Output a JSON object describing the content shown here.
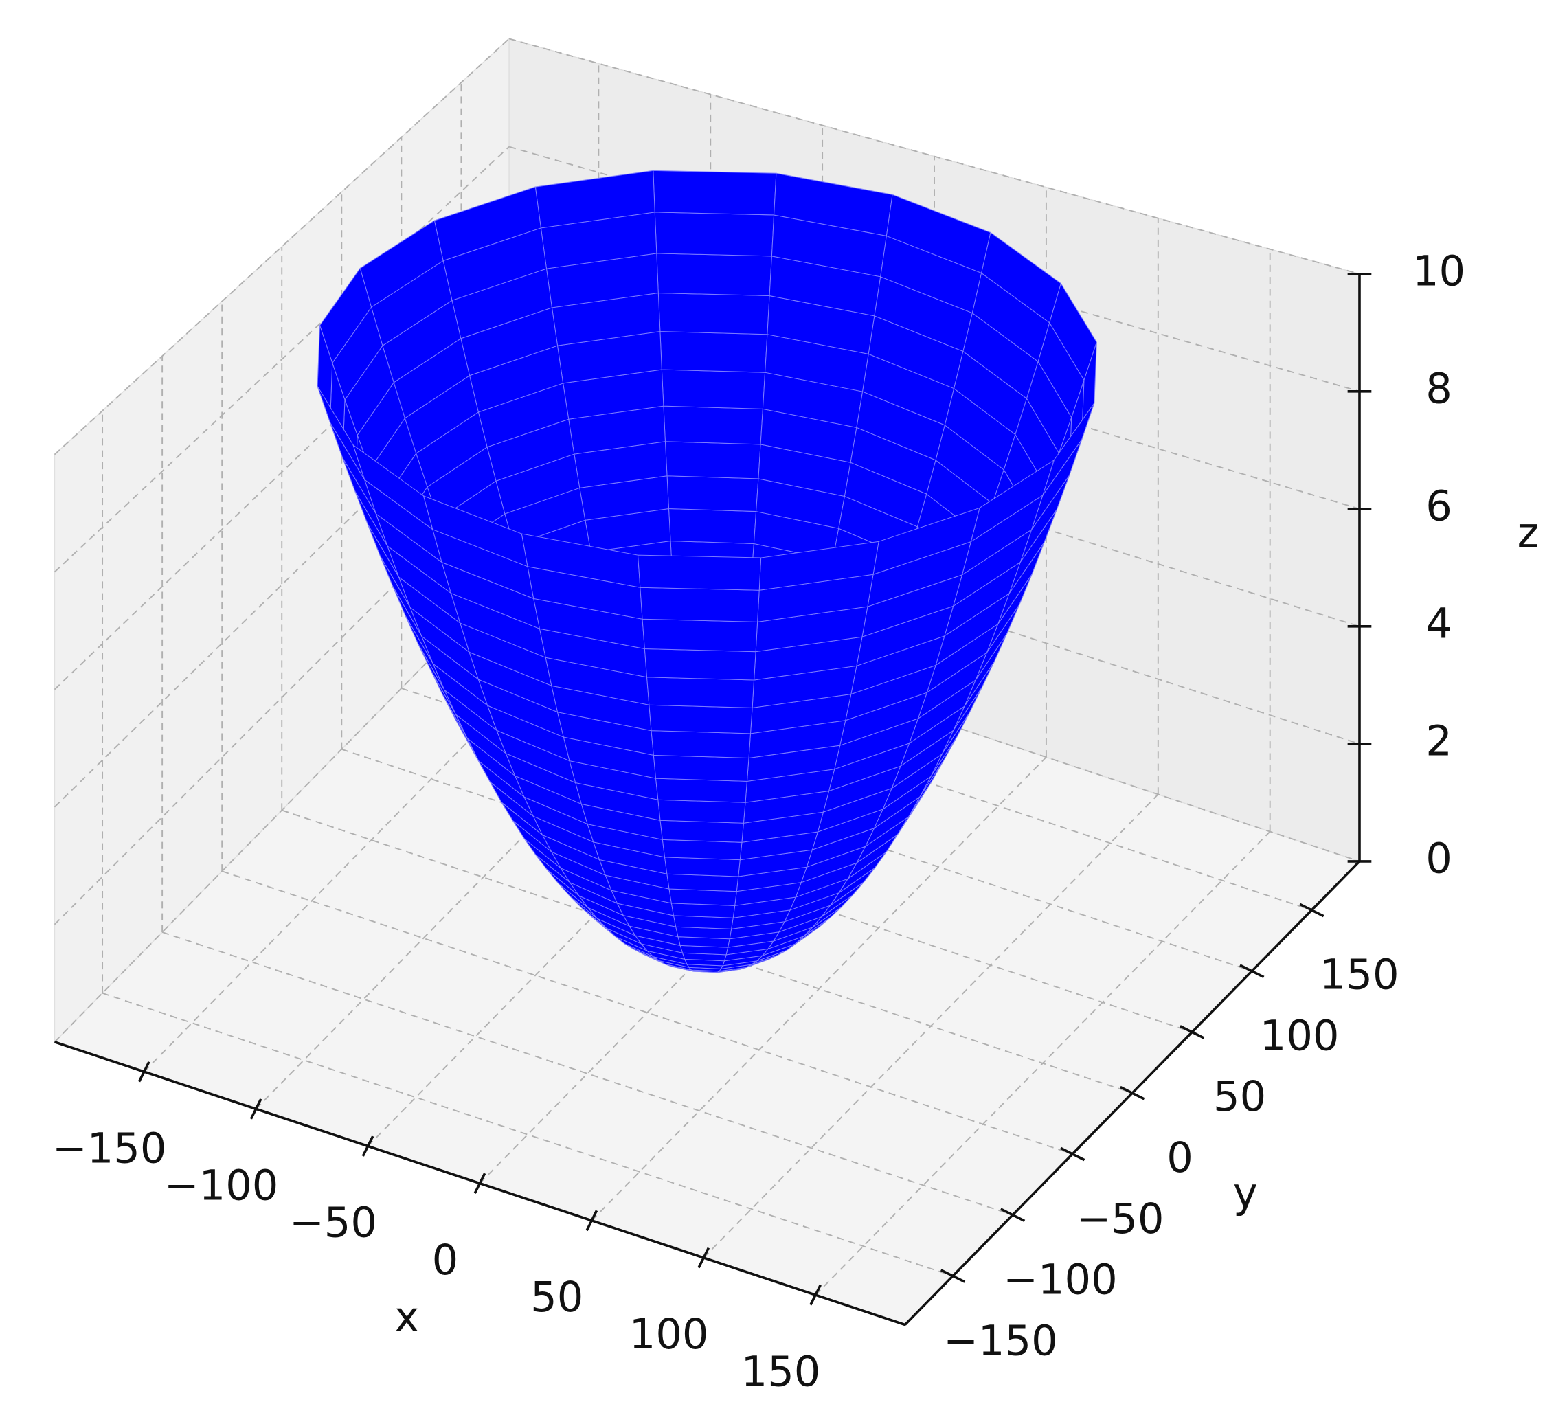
{
  "chart_data": {
    "type": "surface3d",
    "color": "#0000ff",
    "xlabel": "x",
    "ylabel": "y",
    "zlabel": "z",
    "xlim": [
      -190,
      190
    ],
    "ylim": [
      -190,
      190
    ],
    "zlim": [
      0,
      10
    ],
    "xticks": [
      {
        "value": -150,
        "label": "−150"
      },
      {
        "value": -100,
        "label": "−100"
      },
      {
        "value": -50,
        "label": "−50"
      },
      0,
      50,
      100,
      150
    ],
    "yticks": [
      {
        "value": -150,
        "label": "−150"
      },
      {
        "value": -100,
        "label": "−100"
      },
      {
        "value": -50,
        "label": "−50"
      },
      0,
      50,
      100,
      150
    ],
    "zticks": [
      0,
      2,
      4,
      6,
      8,
      10
    ],
    "grid": true,
    "surface": {
      "r": [
        0,
        5,
        10,
        15,
        20,
        25,
        30,
        35,
        40,
        45,
        50,
        55,
        60,
        65,
        70,
        75,
        80,
        85,
        90,
        95,
        100,
        105,
        110,
        115,
        120,
        125,
        130,
        135,
        140,
        145,
        150,
        155
      ],
      "z": [
        0,
        0.01,
        0.04,
        0.09,
        0.17,
        0.26,
        0.37,
        0.51,
        0.67,
        0.84,
        1.04,
        1.26,
        1.5,
        1.76,
        2.04,
        2.34,
        2.66,
        3.01,
        3.37,
        3.76,
        4.16,
        4.59,
        5.04,
        5.5,
        5.99,
        6.5,
        7.03,
        7.59,
        8.16,
        8.75,
        9.37,
        10
      ]
    }
  }
}
